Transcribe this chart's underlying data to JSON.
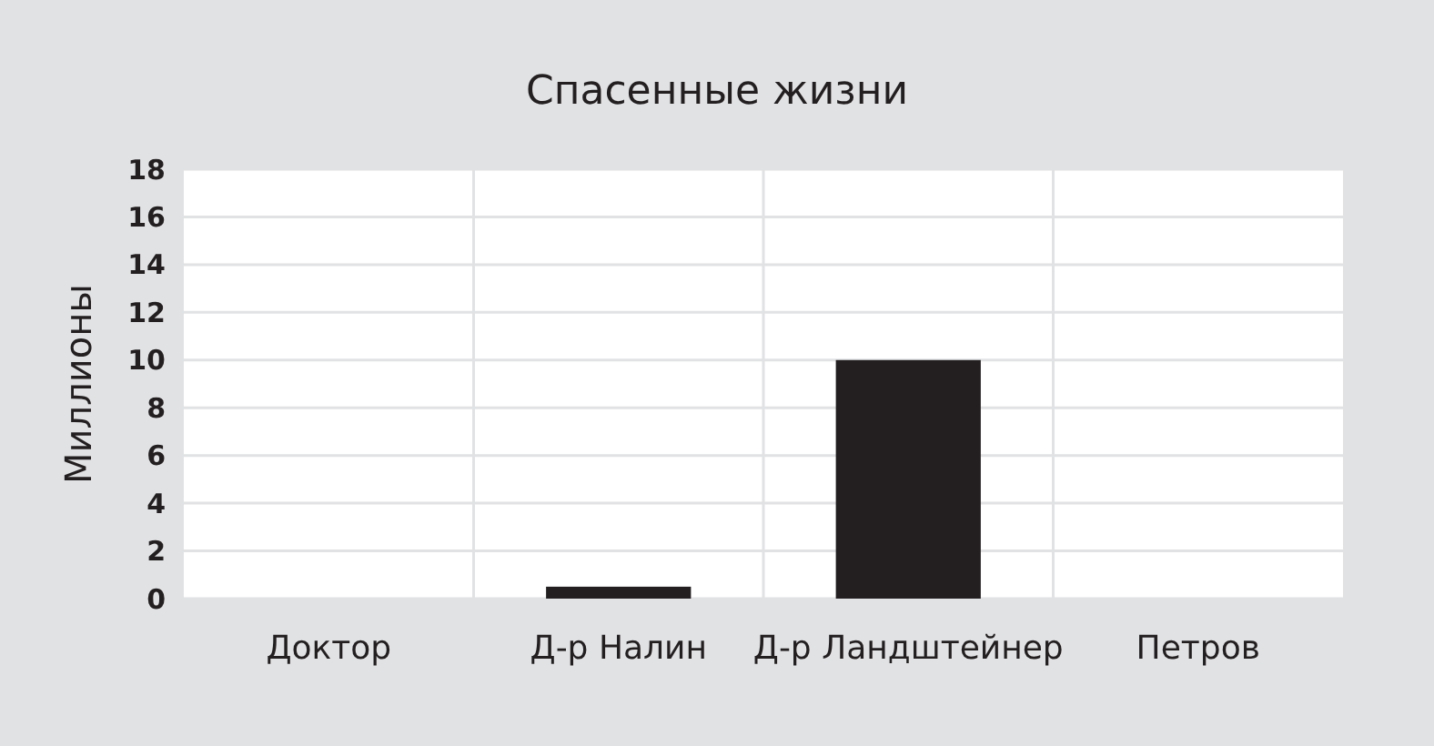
{
  "chart_data": {
    "type": "bar",
    "title": "Спасенные жизни",
    "ylabel": "Миллионы",
    "categories": [
      "Доктор",
      "Д-р Налин",
      "Д-р Ландштейнер",
      "Петров"
    ],
    "values": [
      0,
      0.5,
      10,
      0
    ],
    "color": "#231f20",
    "ylim": [
      0,
      18
    ],
    "yticks": [
      0,
      2,
      4,
      6,
      8,
      10,
      12,
      14,
      16,
      18
    ],
    "grid": true
  }
}
